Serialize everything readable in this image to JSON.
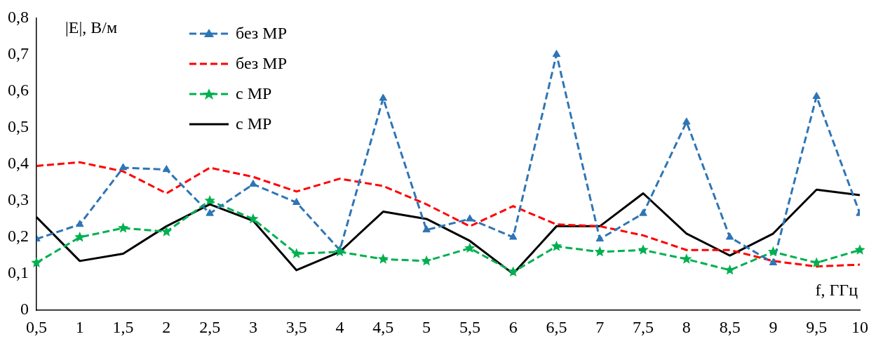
{
  "chart_data": {
    "type": "line",
    "xlabel": "f, ГГц",
    "ylabel": "|E|, В/м",
    "legend": "top left",
    "grid": false,
    "x": [
      0.5,
      1,
      1.5,
      2,
      2.5,
      3,
      3.5,
      4,
      4.5,
      5,
      5.5,
      6,
      6.5,
      7,
      7.5,
      8,
      8.5,
      9,
      9.5,
      10
    ],
    "xlim": [
      0.5,
      10
    ],
    "xticks": [
      {
        "value": 0.5,
        "label": "0,5"
      },
      1,
      {
        "value": 1.5,
        "label": "1,5"
      },
      2,
      {
        "value": 2.5,
        "label": "2,5"
      },
      3,
      {
        "value": 3.5,
        "label": "3,5"
      },
      4,
      {
        "value": 4.5,
        "label": "4,5"
      },
      5,
      {
        "value": 5.5,
        "label": "5,5"
      },
      6,
      {
        "value": 6.5,
        "label": "6,5"
      },
      7,
      {
        "value": 7.5,
        "label": "7,5"
      },
      8,
      {
        "value": 8.5,
        "label": "8,5"
      },
      9,
      {
        "value": 9.5,
        "label": "9,5"
      },
      10
    ],
    "ylim": [
      0,
      0.8
    ],
    "yticks": [
      0,
      {
        "value": 0.1,
        "label": "0,1"
      },
      {
        "value": 0.2,
        "label": "0,2"
      },
      {
        "value": 0.3,
        "label": "0,3"
      },
      {
        "value": 0.4,
        "label": "0,4"
      },
      {
        "value": 0.5,
        "label": "0,5"
      },
      {
        "value": 0.6,
        "label": "0,6"
      },
      {
        "value": 0.7,
        "label": "0,7"
      },
      {
        "value": 0.8,
        "label": "0,8"
      }
    ],
    "series": [
      {
        "name": "без МР",
        "color": "#2e75b6",
        "marker": "triangle",
        "line_style": "dashed",
        "values": [
          0.195,
          0.235,
          0.39,
          0.385,
          0.265,
          0.345,
          0.295,
          0.165,
          0.58,
          0.22,
          0.25,
          0.2,
          0.7,
          0.195,
          0.265,
          0.515,
          0.2,
          0.13,
          0.585,
          0.265
        ]
      },
      {
        "name": "без МР",
        "color": "#ff0000",
        "marker": "none",
        "line_style": "dashed",
        "values": [
          0.395,
          0.405,
          0.38,
          0.32,
          0.39,
          0.365,
          0.325,
          0.36,
          0.34,
          0.29,
          0.23,
          0.285,
          0.235,
          0.23,
          0.205,
          0.165,
          0.165,
          0.135,
          0.12,
          0.125
        ]
      },
      {
        "name": "с МР",
        "color": "#00b050",
        "marker": "star",
        "line_style": "dashed",
        "values": [
          0.13,
          0.2,
          0.225,
          0.215,
          0.3,
          0.25,
          0.155,
          0.16,
          0.14,
          0.135,
          0.17,
          0.105,
          0.175,
          0.16,
          0.165,
          0.14,
          0.11,
          0.16,
          0.13,
          0.165
        ]
      },
      {
        "name": "с МР",
        "color": "#000000",
        "marker": "none",
        "line_style": "solid",
        "values": [
          0.255,
          0.135,
          0.155,
          0.23,
          0.29,
          0.245,
          0.11,
          0.16,
          0.27,
          0.25,
          0.19,
          0.1,
          0.23,
          0.23,
          0.32,
          0.21,
          0.15,
          0.21,
          0.33,
          0.315
        ]
      }
    ]
  }
}
